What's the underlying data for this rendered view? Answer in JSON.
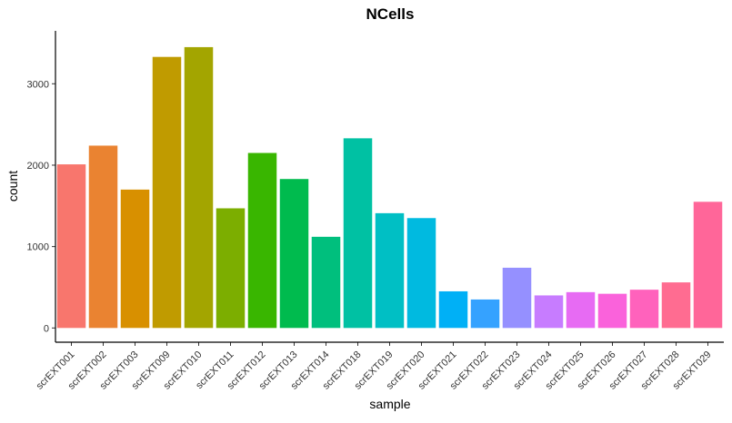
{
  "chart_data": {
    "type": "bar",
    "title": "NCells",
    "xlabel": "sample",
    "ylabel": "count",
    "categories": [
      "scrEXT001",
      "scrEXT002",
      "scrEXT003",
      "scrEXT009",
      "scrEXT010",
      "scrEXT011",
      "scrEXT012",
      "scrEXT013",
      "scrEXT014",
      "scrEXT018",
      "scrEXT019",
      "scrEXT020",
      "scrEXT021",
      "scrEXT022",
      "scrEXT023",
      "scrEXT024",
      "scrEXT025",
      "scrEXT026",
      "scrEXT027",
      "scrEXT028",
      "scrEXT029"
    ],
    "values": [
      2010,
      2240,
      1700,
      3330,
      3450,
      1470,
      2150,
      1830,
      1120,
      2330,
      1410,
      1350,
      450,
      350,
      740,
      400,
      440,
      420,
      470,
      560,
      1550
    ],
    "colors": [
      "#F8766D",
      "#EA8331",
      "#D89000",
      "#C09B00",
      "#A3A500",
      "#7CAE00",
      "#39B600",
      "#00BB4E",
      "#00BF7D",
      "#00C1A3",
      "#00BFC4",
      "#00BAE0",
      "#00B0F6",
      "#35A2FF",
      "#9590FF",
      "#C77CFF",
      "#E76BF3",
      "#FA62DB",
      "#FF62BC",
      "#FF6C91",
      "#FF6699"
    ],
    "yticks": [
      0,
      1000,
      2000,
      3000
    ],
    "ytick_labels": [
      "0",
      "1000",
      "2000",
      "3000"
    ],
    "ylim": [
      -175,
      3650
    ],
    "grid": false,
    "legend": "none"
  }
}
